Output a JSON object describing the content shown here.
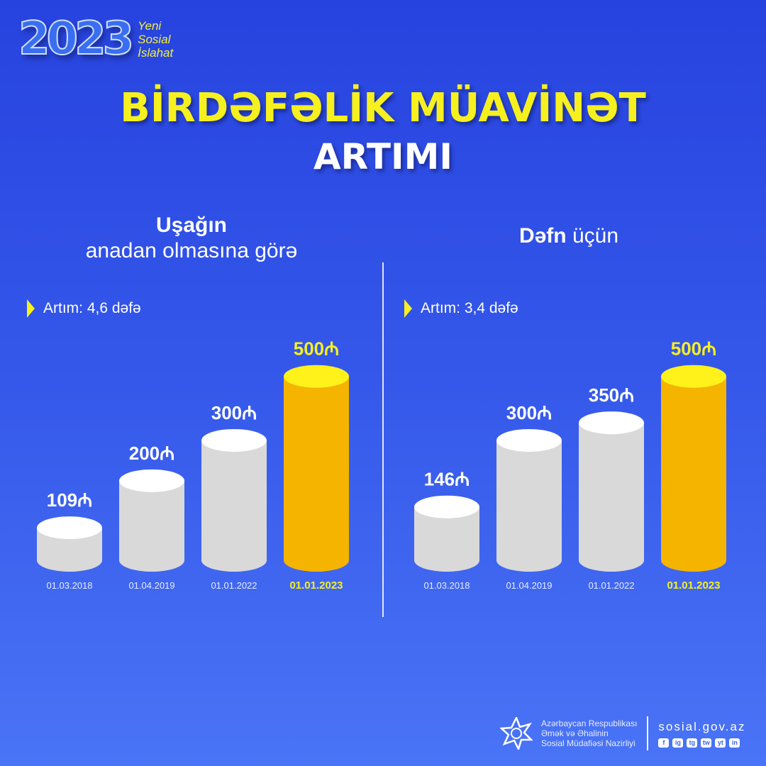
{
  "logo": {
    "year": "2023",
    "tagline": [
      "Yeni",
      "Sosial",
      "İslahat"
    ]
  },
  "title": {
    "line1": "BİRDƏFƏLİK MÜAVİNƏT",
    "line2": "ARTIMI"
  },
  "colors": {
    "accent": "#f6f01f",
    "gold": "#f4b400",
    "bar": "#d9d9d9"
  },
  "chart_data": [
    {
      "type": "bar",
      "title_bold": "Uşağın",
      "title_rest": "anadan olmasına görə",
      "growth_label": "Artım: 4,6 dəfə",
      "categories": [
        "01.03.2018",
        "01.04.2019",
        "01.01.2022",
        "01.01.2023"
      ],
      "values": [
        109,
        200,
        300,
        500
      ],
      "unit": "₼",
      "highlight_index": 3
    },
    {
      "type": "bar",
      "title_bold": "Dəfn",
      "title_rest": "üçün",
      "growth_label": "Artım: 3,4 dəfə",
      "categories": [
        "01.03.2018",
        "01.04.2019",
        "01.01.2022",
        "01.01.2023"
      ],
      "values": [
        146,
        300,
        350,
        500
      ],
      "unit": "₼",
      "highlight_index": 3
    }
  ],
  "footer": {
    "org": [
      "Azərbaycan Respublikası",
      "Əmək və Əhalinin",
      "Sosial Müdafiəsi Nazirliyi"
    ],
    "site": "sosial.gov.az",
    "social_icons": [
      "f",
      "ig",
      "tg",
      "tw",
      "yt",
      "in"
    ]
  }
}
